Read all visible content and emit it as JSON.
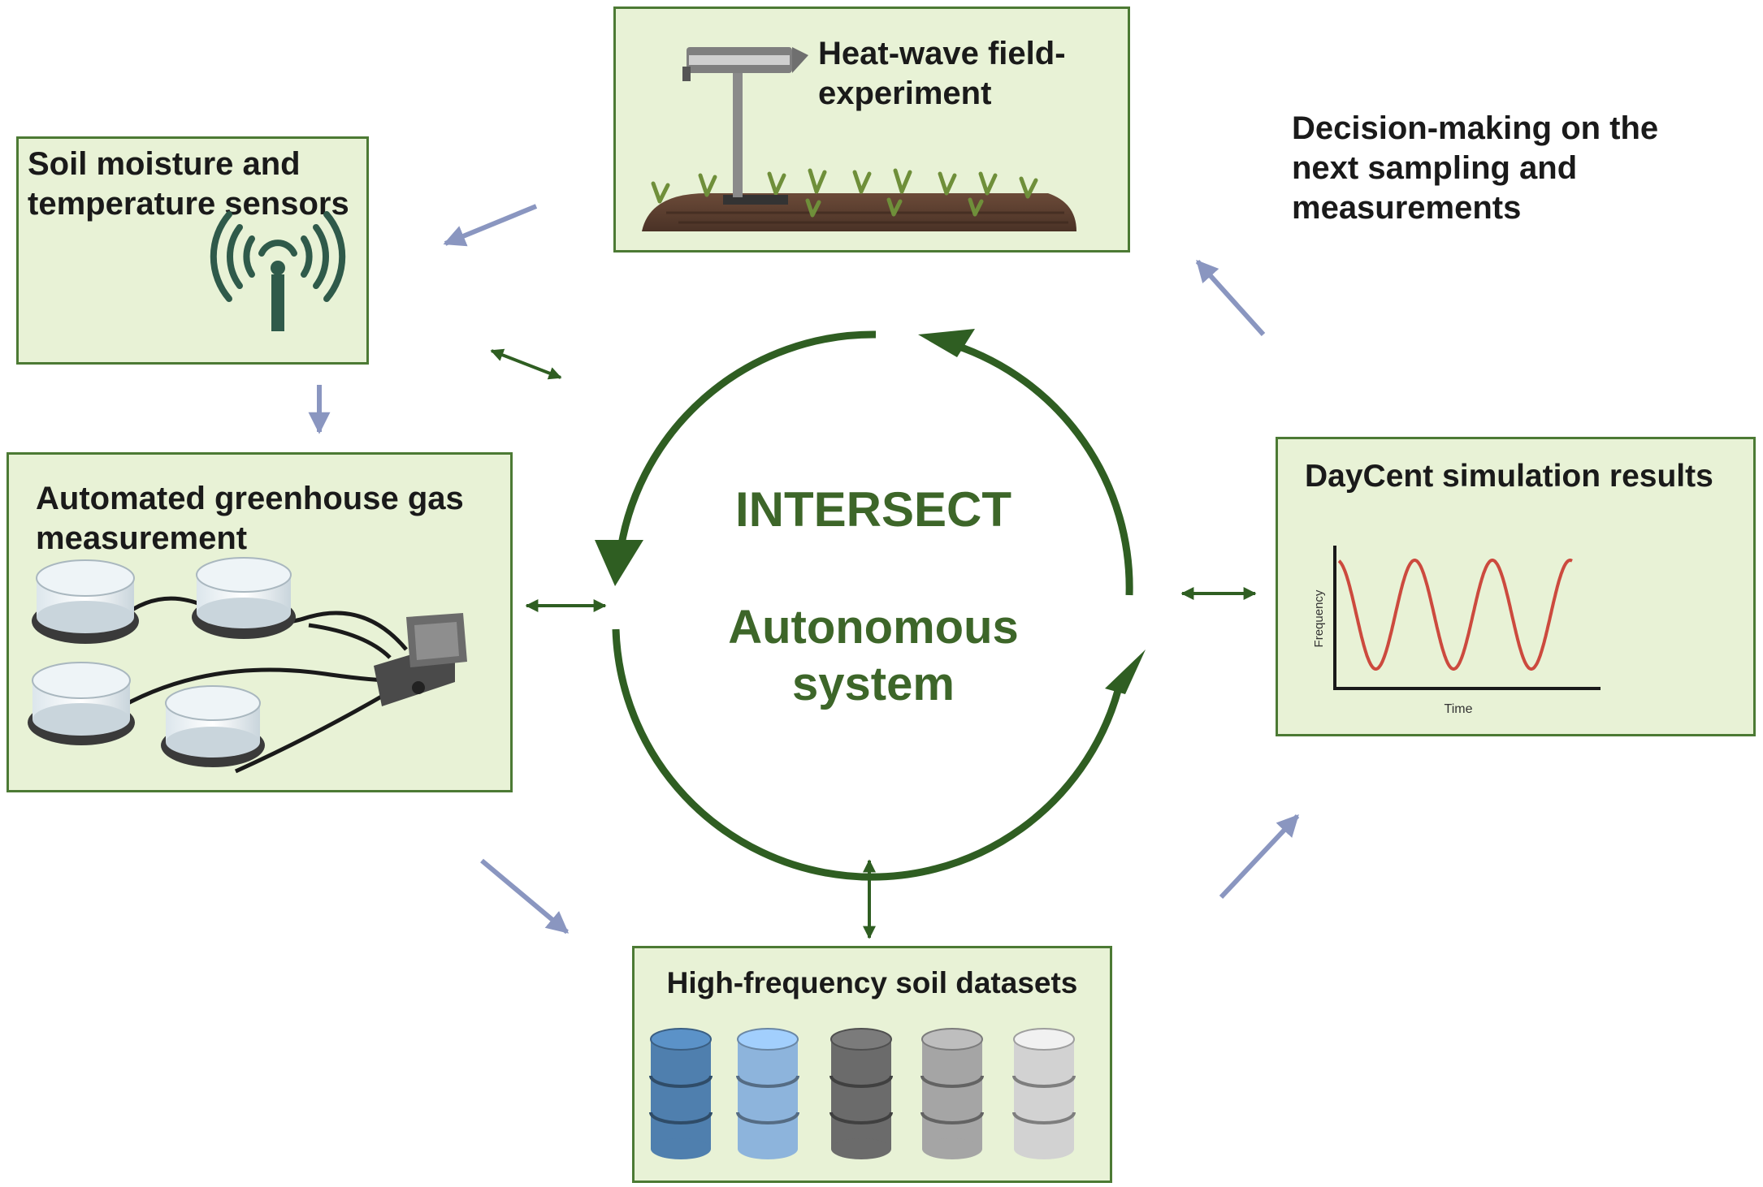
{
  "colors": {
    "box_fill": "#e8f2d6",
    "box_border": "#4c7a34",
    "cycle_green": "#2f5e22",
    "flow_arrow": "#8a96c0",
    "curve_red": "#cc4a3e"
  },
  "center": {
    "title": "INTERSECT",
    "subtitle": "Autonomous system"
  },
  "nodes": {
    "heatwave": {
      "title": "Heat-wave field-experiment",
      "icon": "heat-lamp-field-icon"
    },
    "sensors": {
      "title": "Soil moisture and temperature sensors",
      "icon": "wireless-sensor-icon"
    },
    "greenhouse": {
      "title": "Automated greenhouse gas measurement",
      "icon": "gas-chamber-icon"
    },
    "datasets": {
      "title": "High-frequency soil datasets",
      "icon": "database-icon"
    },
    "daycent": {
      "title": "DayCent simulation results",
      "icon": "sine-plot-icon"
    },
    "decision": {
      "title": "Decision-making on the next sampling and measurements"
    }
  },
  "daycent_plot": {
    "xlabel": "Time",
    "ylabel": "Frequency"
  },
  "database_colors": [
    "#4f7fae",
    "#8db4dc",
    "#6b6b6b",
    "#a5a5a5",
    "#d2d2d2"
  ]
}
